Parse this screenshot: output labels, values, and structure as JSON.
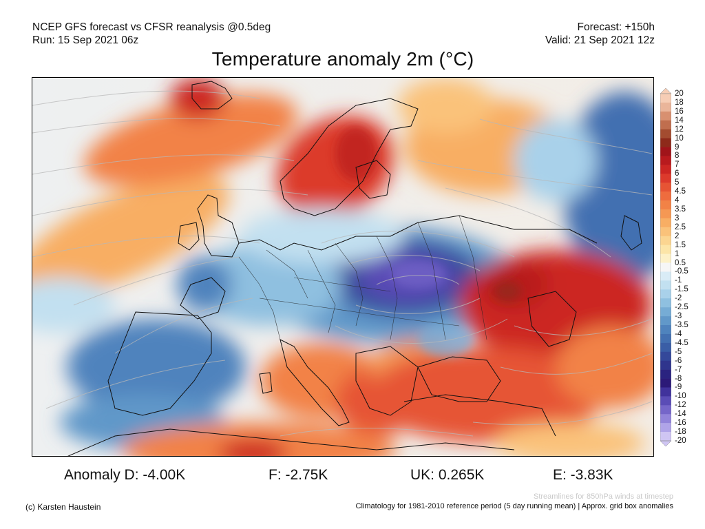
{
  "header": {
    "line1_left": "NCEP GFS forecast vs CFSR reanalysis @0.5deg",
    "line2_left": "Run: 15 Sep 2021 06z",
    "line1_right": "Forecast: +150h",
    "line2_right": "Valid: 21 Sep 2021 12z"
  },
  "title": "Temperature anomaly 2m (°C)",
  "colorbar": {
    "labels": [
      "20",
      "18",
      "16",
      "14",
      "12",
      "10",
      "9",
      "8",
      "7",
      "6",
      "5",
      "4.5",
      "4",
      "3.5",
      "3",
      "2.5",
      "2",
      "1.5",
      "1",
      "0.5",
      "-0.5",
      "-1",
      "-1.5",
      "-2",
      "-2.5",
      "-3",
      "-3.5",
      "-4",
      "-4.5",
      "-5",
      "-6",
      "-7",
      "-8",
      "-9",
      "-10",
      "-12",
      "-14",
      "-16",
      "-18",
      "-20"
    ],
    "colors": [
      "#f6cdb5",
      "#eab59a",
      "#d89070",
      "#c06e4e",
      "#a34c30",
      "#8e2a1a",
      "#a0141a",
      "#b81a1e",
      "#cc2623",
      "#dc3a2c",
      "#e65434",
      "#ee6c3e",
      "#f28246",
      "#f59854",
      "#f8ae64",
      "#fac27a",
      "#fbd591",
      "#fce5a8",
      "#fdf1c8",
      "#f6f6f6",
      "#d9ecf6",
      "#c2e0f0",
      "#a9d1ea",
      "#8fc0e0",
      "#76acd5",
      "#6198c9",
      "#4f83bd",
      "#4370b1",
      "#3a5ea6",
      "#34489a",
      "#2f358d",
      "#2a2380",
      "#2c1a78",
      "#40329c",
      "#5a4cb6",
      "#7566c9",
      "#9284da",
      "#b0a4e8",
      "#cfc5f3"
    ]
  },
  "stats": [
    {
      "label": "Anomaly D: -4.00K"
    },
    {
      "label": "F: -2.75K"
    },
    {
      "label": "UK: 0.265K"
    },
    {
      "label": "E: -3.83K"
    }
  ],
  "footer": {
    "credit": "(c) Karsten Haustein",
    "streamlines_note": "Streamlines for 850hPa winds at timestep",
    "climatology_note": "Climatology for 1981-2010 reference period (5 day running mean) | Approx. grid box anomalies"
  }
}
